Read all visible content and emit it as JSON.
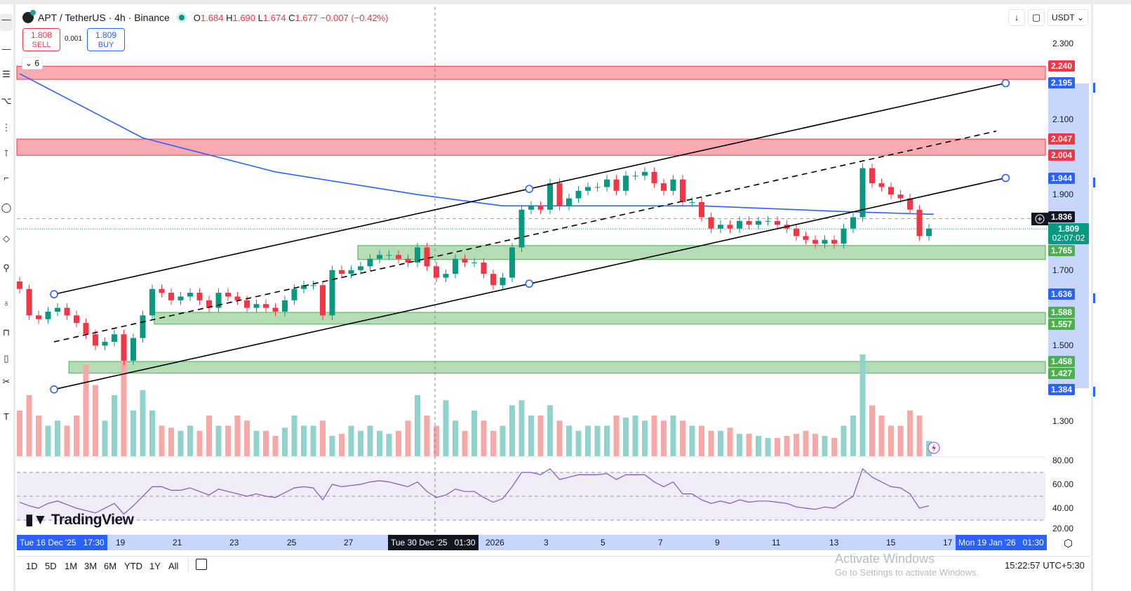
{
  "header": {
    "symbol": "APT / TetherUS · 4h · Binance",
    "open_label": "O",
    "open": "1.684",
    "high_label": "H",
    "high": "1.690",
    "low_label": "L",
    "low": "1.674",
    "close_label": "C",
    "close": "1.677",
    "change": "−0.007 (−0.42%)",
    "sell_price": "1.808",
    "sell_label": "SELL",
    "spread": "0.001",
    "buy_price": "1.809",
    "buy_label": "BUY",
    "indicators_count": "6"
  },
  "toolbar_right": {
    "scroll_icon": "arrow-down-icon",
    "fullscreen_icon": "fullscreen-icon",
    "currency": "USDT"
  },
  "price_axis": {
    "ticks": [
      "2.300",
      "2.100",
      "1.900",
      "1.700",
      "1.500",
      "1.300"
    ],
    "tick_values": [
      2.3,
      2.1,
      1.9,
      1.7,
      1.5,
      1.3
    ],
    "rsi_ticks": [
      "80.00",
      "60.00",
      "40.00",
      "20.00"
    ]
  },
  "price_tags": [
    {
      "text": "2.240",
      "value": 2.24,
      "color": "#f23645"
    },
    {
      "text": "2.195",
      "value": 2.195,
      "color": "#2962ff"
    },
    {
      "text": "2.047",
      "value": 2.047,
      "color": "#f23645"
    },
    {
      "text": "2.004",
      "value": 2.004,
      "color": "#f23645"
    },
    {
      "text": "1.944",
      "value": 1.944,
      "color": "#2962ff"
    },
    {
      "text": "1.836",
      "value": 1.836,
      "color": "#131722"
    },
    {
      "text": "1.765",
      "value": 1.765,
      "color": "#4caf50"
    },
    {
      "text": "1.636",
      "value": 1.636,
      "color": "#2962ff"
    },
    {
      "text": "1.588",
      "value": 1.588,
      "color": "#4caf50"
    },
    {
      "text": "1.557",
      "value": 1.557,
      "color": "#4caf50"
    },
    {
      "text": "1.458",
      "value": 1.458,
      "color": "#4caf50"
    },
    {
      "text": "1.427",
      "value": 1.427,
      "color": "#4caf50"
    },
    {
      "text": "1.384",
      "value": 1.384,
      "color": "#2962ff"
    }
  ],
  "last_price": {
    "price": "1.809",
    "countdown": "02:07:02",
    "value": 1.809,
    "color": "#089981"
  },
  "chart_data": {
    "type": "candlestick",
    "interval": "4h",
    "closes": [
      1.65,
      1.58,
      1.57,
      1.59,
      1.6,
      1.58,
      1.56,
      1.53,
      1.5,
      1.51,
      1.53,
      1.46,
      1.52,
      1.58,
      1.65,
      1.64,
      1.62,
      1.63,
      1.64,
      1.62,
      1.6,
      1.64,
      1.63,
      1.62,
      1.6,
      1.61,
      1.6,
      1.59,
      1.62,
      1.65,
      1.66,
      1.66,
      1.58,
      1.7,
      1.69,
      1.7,
      1.71,
      1.73,
      1.74,
      1.74,
      1.73,
      1.72,
      1.76,
      1.71,
      1.68,
      1.69,
      1.73,
      1.72,
      1.72,
      1.69,
      1.66,
      1.68,
      1.76,
      1.86,
      1.87,
      1.86,
      1.93,
      1.87,
      1.89,
      1.91,
      1.92,
      1.92,
      1.94,
      1.91,
      1.95,
      1.95,
      1.96,
      1.93,
      1.91,
      1.94,
      1.88,
      1.88,
      1.84,
      1.81,
      1.82,
      1.81,
      1.83,
      1.82,
      1.83,
      1.83,
      1.82,
      1.81,
      1.79,
      1.78,
      1.77,
      1.78,
      1.77,
      1.81,
      1.84,
      1.97,
      1.93,
      1.92,
      1.9,
      1.89,
      1.86,
      1.79,
      1.81
    ],
    "volumes": [
      45,
      60,
      40,
      30,
      35,
      30,
      40,
      90,
      70,
      35,
      60,
      95,
      45,
      65,
      45,
      30,
      28,
      25,
      30,
      25,
      40,
      30,
      30,
      40,
      35,
      25,
      25,
      20,
      28,
      40,
      30,
      30,
      35,
      20,
      22,
      30,
      25,
      30,
      25,
      22,
      25,
      35,
      60,
      40,
      30,
      55,
      35,
      25,
      45,
      35,
      25,
      30,
      50,
      55,
      40,
      40,
      50,
      35,
      30,
      25,
      30,
      30,
      30,
      40,
      38,
      40,
      35,
      40,
      35,
      40,
      35,
      30,
      30,
      25,
      25,
      28,
      22,
      22,
      20,
      18,
      18,
      20,
      22,
      25,
      22,
      20,
      18,
      30,
      40,
      100,
      50,
      40,
      30,
      30,
      45,
      40,
      15
    ],
    "rsi": [
      45,
      42,
      40,
      44,
      46,
      43,
      40,
      38,
      36,
      40,
      44,
      35,
      42,
      50,
      58,
      58,
      55,
      55,
      57,
      54,
      51,
      56,
      54,
      52,
      50,
      52,
      50,
      49,
      53,
      57,
      58,
      57,
      47,
      60,
      58,
      59,
      60,
      62,
      63,
      62,
      60,
      58,
      62,
      54,
      49,
      51,
      56,
      54,
      54,
      49,
      45,
      48,
      58,
      70,
      70,
      68,
      73,
      64,
      66,
      68,
      68,
      68,
      69,
      64,
      68,
      68,
      68,
      62,
      58,
      62,
      52,
      52,
      47,
      44,
      46,
      44,
      47,
      45,
      46,
      46,
      45,
      44,
      41,
      40,
      39,
      41,
      40,
      45,
      50,
      73,
      66,
      62,
      58,
      57,
      52,
      40,
      42
    ],
    "rsi_levels": [
      70,
      50,
      30
    ],
    "moving_average": [
      [
        0,
        2.22
      ],
      [
        13,
        2.05
      ],
      [
        27,
        1.96
      ],
      [
        42,
        1.9
      ],
      [
        51,
        1.87
      ],
      [
        57,
        1.87
      ],
      [
        72,
        1.87
      ],
      [
        87,
        1.855
      ],
      [
        96,
        1.848
      ],
      [
        96.5,
        1.848
      ]
    ],
    "zones": [
      {
        "top": 2.24,
        "bottom": 2.205,
        "from": 0,
        "color": "#f23645"
      },
      {
        "top": 2.047,
        "bottom": 2.004,
        "from": 0,
        "color": "#f23645"
      },
      {
        "top": 1.765,
        "bottom": 1.728,
        "from": 36,
        "color": "#4caf50"
      },
      {
        "top": 1.588,
        "bottom": 1.557,
        "from": 14.5,
        "color": "#4caf50"
      },
      {
        "top": 1.458,
        "bottom": 1.427,
        "from": 5.5,
        "color": "#4caf50"
      }
    ],
    "trendlines": [
      {
        "from": [
          3.63,
          1.636
        ],
        "to": [
          104.1,
          2.195
        ],
        "style": "solid",
        "handles": [
          [
            3.63,
            1.636
          ],
          [
            53.8,
            1.915
          ],
          [
            104.1,
            2.195
          ]
        ]
      },
      {
        "from": [
          3.63,
          1.51
        ],
        "to": [
          103.1,
          2.068
        ],
        "style": "dashed",
        "handles": []
      },
      {
        "from": [
          3.63,
          1.384
        ],
        "to": [
          104.1,
          1.944
        ],
        "style": "solid",
        "handles": [
          [
            3.63,
            1.384
          ],
          [
            53.8,
            1.664
          ],
          [
            104.1,
            1.944
          ]
        ]
      }
    ],
    "colors": {
      "up": "#089981",
      "down": "#f23645",
      "vol_up": "#92d2cc",
      "vol_down": "#f7a9a7",
      "ma": "#2962ff",
      "rsi": "#7e57c2"
    }
  },
  "time_axis": {
    "labels": [
      "19",
      "21",
      "23",
      "25",
      "27",
      "2026",
      "3",
      "5",
      "7",
      "9",
      "11",
      "13",
      "15",
      "17"
    ],
    "range_start": "Tue 16 Dec '25   17:30",
    "crosshair": "Tue 30 Dec '25   01:30",
    "range_end": "Mon 19 Jan '26   01:30"
  },
  "bottom": {
    "ranges": [
      "1D",
      "5D",
      "1M",
      "3M",
      "6M",
      "YTD",
      "1Y",
      "All"
    ],
    "clock": "15:22:57 UTC+5:30"
  },
  "watermark": {
    "brand": "TradingView",
    "windows_title": "Activate Windows",
    "windows_sub": "Go to Settings to activate Windows."
  }
}
